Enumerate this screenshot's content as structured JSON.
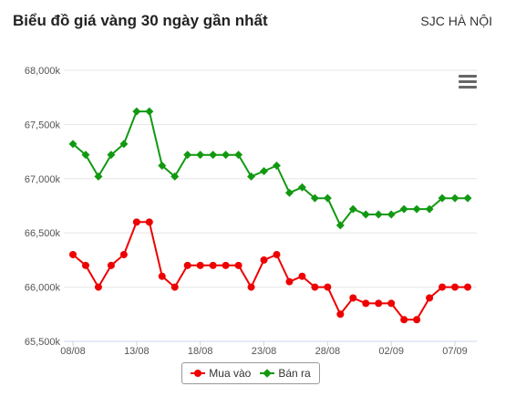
{
  "header": {
    "title": "Biểu đồ giá vàng 30 ngày gần nhất",
    "location": "SJC HÀ NỘI",
    "menu_icon": "hamburger-menu-icon"
  },
  "chart_data": {
    "type": "line",
    "y_ticks": [
      "65,500k",
      "66,000k",
      "66,500k",
      "67,000k",
      "67,500k",
      "68,000k"
    ],
    "ylim": [
      65500,
      68000
    ],
    "x_tick_labels": [
      {
        "index": 0,
        "label": "08/08"
      },
      {
        "index": 5,
        "label": "13/08"
      },
      {
        "index": 10,
        "label": "18/08"
      },
      {
        "index": 15,
        "label": "23/08"
      },
      {
        "index": 20,
        "label": "28/08"
      },
      {
        "index": 25,
        "label": "02/09"
      },
      {
        "index": 30,
        "label": "07/09"
      }
    ],
    "grid": true,
    "legend_placement": "bottom-center",
    "series": [
      {
        "name": "Mua vào",
        "color": "#ee0000",
        "marker": "circle",
        "values": [
          66300,
          66200,
          66000,
          66200,
          66300,
          66600,
          66600,
          66100,
          66000,
          66200,
          66200,
          66200,
          66200,
          66200,
          66000,
          66250,
          66300,
          66050,
          66100,
          66000,
          66000,
          65750,
          65900,
          65850,
          65850,
          65850,
          65700,
          65700,
          65900,
          66000,
          66000,
          66000
        ]
      },
      {
        "name": "Bán ra",
        "color": "#119911",
        "marker": "diamond",
        "values": [
          67320,
          67220,
          67020,
          67220,
          67320,
          67620,
          67620,
          67120,
          67020,
          67220,
          67220,
          67220,
          67220,
          67220,
          67020,
          67070,
          67120,
          66870,
          66920,
          66820,
          66820,
          66570,
          66720,
          66670,
          66670,
          66670,
          66720,
          66720,
          66720,
          66820,
          66820,
          66820
        ]
      }
    ]
  }
}
